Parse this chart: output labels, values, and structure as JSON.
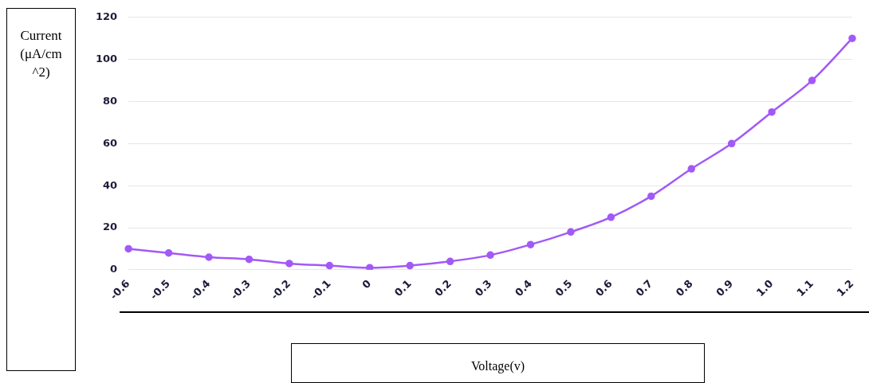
{
  "chart_data": {
    "type": "line",
    "xlabel": "Voltage(v)",
    "ylabel": "Current (μA/cm^2)",
    "categories": [
      "-0.6",
      "-0.5",
      "-0.4",
      "-0.3",
      "-0.2",
      "-0.1",
      "0",
      "0.1",
      "0.2",
      "0.3",
      "0.4",
      "0.5",
      "0.6",
      "0.7",
      "0.8",
      "0.9",
      "1.0",
      "1.1",
      "1.2"
    ],
    "series": [
      {
        "color": "#a259f7",
        "values": [
          10,
          8,
          6,
          5,
          3,
          2,
          1,
          2,
          4,
          7,
          12,
          18,
          25,
          35,
          48,
          60,
          75,
          90,
          110
        ]
      }
    ],
    "ylim": [
      0,
      120
    ],
    "yticks": [
      0,
      20,
      40,
      60,
      80,
      100,
      120
    ],
    "grid": "y",
    "legend": false,
    "marker": "circle",
    "line_style": "solid"
  }
}
